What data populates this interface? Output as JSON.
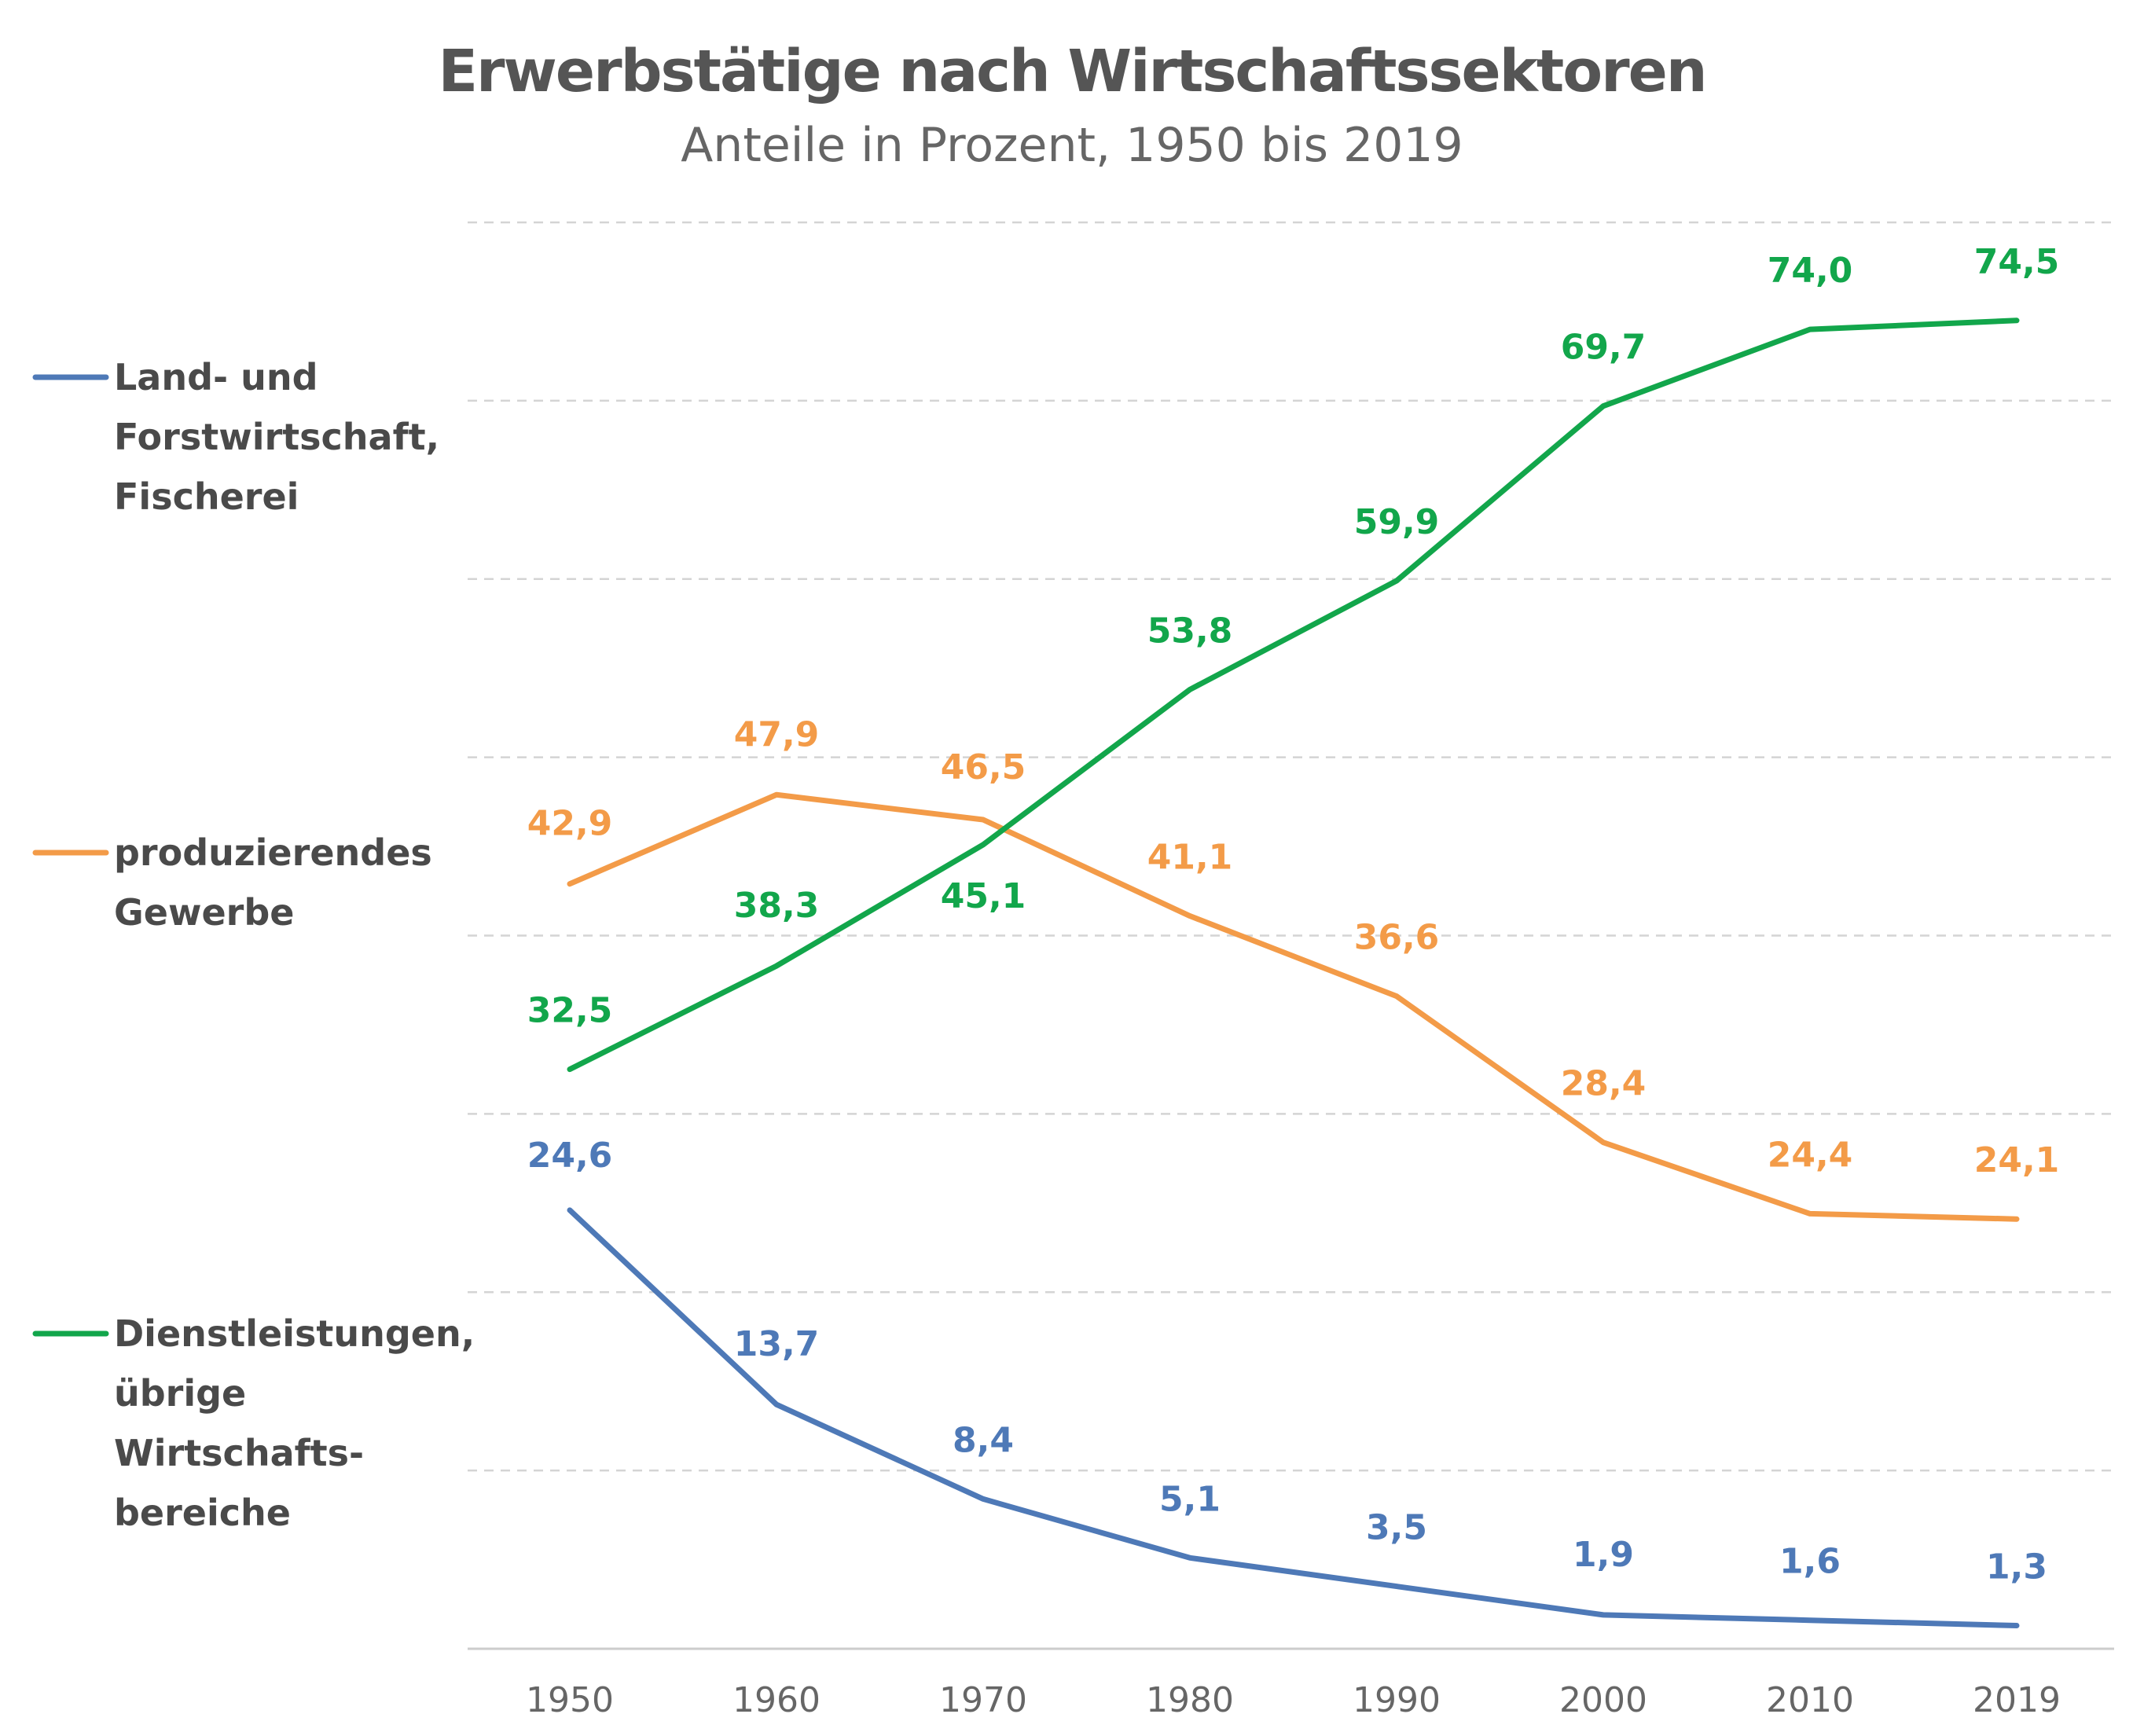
{
  "chart_data": {
    "type": "line",
    "title": "Erwerbstätige nach Wirtschaftssektoren",
    "subtitle": "Anteile in Prozent, 1950 bis 2019",
    "x": [
      "1950",
      "1960",
      "1970",
      "1980",
      "1990",
      "2000",
      "2010",
      "2019"
    ],
    "ylim": [
      0,
      80
    ],
    "grid": true,
    "legend_position": "left",
    "series": [
      {
        "name": "Land- und Forstwirtschaft, Fischerei",
        "legend_lines": [
          "Land- und",
          "Forstwirtschaft,",
          "Fischerei"
        ],
        "color": "#4e79b7",
        "values": [
          24.6,
          13.7,
          8.4,
          5.1,
          3.5,
          1.9,
          1.6,
          1.3
        ],
        "labels": [
          "24,6",
          "13,7",
          "8,4",
          "5,1",
          "3,5",
          "1,9",
          "1,6",
          "1,3"
        ]
      },
      {
        "name": "produzierendes Gewerbe",
        "legend_lines": [
          "produzierendes",
          "Gewerbe"
        ],
        "color": "#f39b48",
        "values": [
          42.9,
          47.9,
          46.5,
          41.1,
          36.6,
          28.4,
          24.4,
          24.1
        ],
        "labels": [
          "42,9",
          "47,9",
          "46,5",
          "41,1",
          "36,6",
          "28,4",
          "24,4",
          "24,1"
        ]
      },
      {
        "name": "Dienstleistungen, übrige Wirtschaftsbereiche",
        "legend_lines": [
          "Dienstleistungen,",
          "übrige",
          "Wirtschafts-",
          "bereiche"
        ],
        "color": "#12a64b",
        "values": [
          32.5,
          38.3,
          45.1,
          53.8,
          59.9,
          69.7,
          74.0,
          74.5
        ],
        "labels": [
          "32,5",
          "38,3",
          "45,1",
          "53,8",
          "59,9",
          "69,7",
          "74,0",
          "74,5"
        ]
      }
    ]
  }
}
